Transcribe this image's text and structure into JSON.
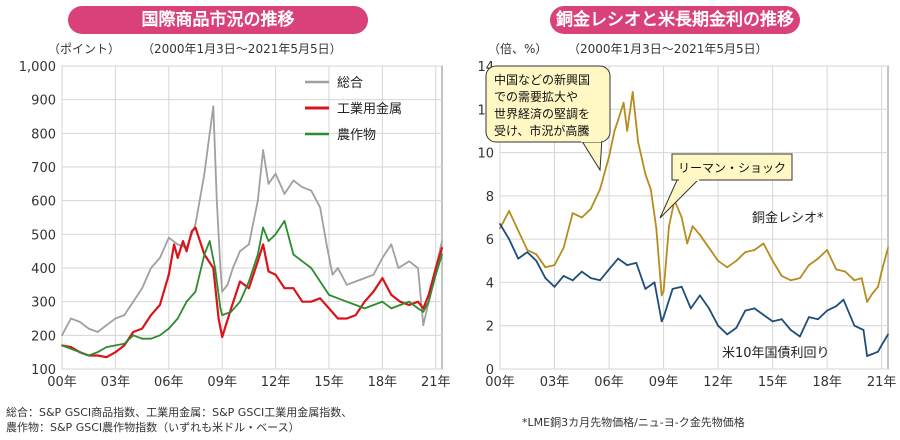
{
  "left": {
    "title": "国際商品市況の推移",
    "subtitle": "（2000年1月3日〜2021年5月5日）",
    "unit": "（ポイント）",
    "notes": [
      "総合：S&P GSCI商品指数、工業用金属：S&P GSCI工業用金属指数、",
      "農作物：S&P GSCI農作物指数（いずれも米ドル・ベース）"
    ]
  },
  "right": {
    "title": "銅金レシオと米長期金利の推移",
    "subtitle": "（2000年1月3日〜2021年5月5日）",
    "unit": "（倍、%）",
    "notes": [
      "*LME銅3カ月先物価格/ニュ-ヨ-ク金先物価格"
    ],
    "callout_text": [
      "中国などの新興国",
      "での需要拡大や",
      "世界経済の堅調を",
      "受け、市況が高騰"
    ],
    "lehman_label": "リーマン・ショック"
  },
  "colors": {
    "total": "#a0a0a0",
    "metals": "#d9141b",
    "agri": "#2e8b2e",
    "copper_gold": "#b58d1e",
    "treasury": "#1f4e79",
    "title_bg": "#d9417a"
  },
  "chart_data": [
    {
      "type": "line",
      "title": "国際商品市況の推移",
      "ylabel": "（ポイント）",
      "ylim": [
        100,
        1000
      ],
      "yticks": [
        100,
        200,
        300,
        400,
        500,
        600,
        700,
        800,
        900,
        1000
      ],
      "yticklabels": [
        "100",
        "200",
        "300",
        "400",
        "500",
        "600",
        "700",
        "800",
        "900",
        "1,000"
      ],
      "xlim": [
        2000,
        2021.35
      ],
      "xticks": [
        2000,
        2003,
        2006,
        2009,
        2012,
        2015,
        2018,
        2021
      ],
      "xticklabels": [
        "00年",
        "03年",
        "06年",
        "09年",
        "12年",
        "15年",
        "18年",
        "21年"
      ],
      "grid": true,
      "legend_position": "top-right",
      "series": [
        {
          "name": "総合",
          "color": "#a0a0a0",
          "x": [
            2000,
            2000.5,
            2001,
            2001.5,
            2002,
            2002.5,
            2003,
            2003.5,
            2004,
            2004.5,
            2005,
            2005.5,
            2006,
            2006.5,
            2007,
            2007.5,
            2008,
            2008.3,
            2008.5,
            2008.7,
            2008.9,
            2009,
            2009.3,
            2009.6,
            2010,
            2010.5,
            2011,
            2011.3,
            2011.6,
            2012,
            2012.5,
            2013,
            2013.5,
            2014,
            2014.5,
            2014.9,
            2015.2,
            2015.5,
            2016,
            2016.5,
            2017,
            2017.5,
            2018,
            2018.5,
            2018.9,
            2019.5,
            2020,
            2020.3,
            2020.6,
            2021,
            2021.35
          ],
          "y": [
            200,
            250,
            240,
            220,
            210,
            230,
            250,
            260,
            300,
            340,
            400,
            430,
            490,
            470,
            460,
            530,
            680,
            800,
            880,
            600,
            400,
            330,
            350,
            400,
            450,
            470,
            600,
            750,
            650,
            680,
            620,
            660,
            640,
            630,
            580,
            460,
            380,
            400,
            350,
            360,
            370,
            380,
            430,
            470,
            400,
            420,
            400,
            230,
            300,
            400,
            480
          ]
        },
        {
          "name": "工業用金属",
          "color": "#d9141b",
          "x": [
            2000,
            2000.5,
            2001,
            2001.5,
            2002,
            2002.5,
            2003,
            2003.5,
            2004,
            2004.5,
            2005,
            2005.5,
            2006,
            2006.3,
            2006.5,
            2006.8,
            2007,
            2007.3,
            2007.5,
            2008,
            2008.5,
            2008.8,
            2009,
            2009.5,
            2010,
            2010.5,
            2011,
            2011.3,
            2011.6,
            2012,
            2012.5,
            2013,
            2013.5,
            2014,
            2014.5,
            2015,
            2015.5,
            2016,
            2016.5,
            2017,
            2017.5,
            2018,
            2018.5,
            2019,
            2019.5,
            2020,
            2020.3,
            2020.6,
            2021,
            2021.35
          ],
          "y": [
            170,
            165,
            150,
            140,
            140,
            135,
            150,
            170,
            210,
            220,
            260,
            290,
            380,
            470,
            430,
            480,
            450,
            510,
            520,
            440,
            400,
            250,
            195,
            280,
            360,
            340,
            420,
            470,
            390,
            380,
            340,
            340,
            300,
            300,
            310,
            280,
            250,
            250,
            260,
            300,
            330,
            370,
            320,
            300,
            290,
            300,
            280,
            320,
            400,
            460
          ]
        },
        {
          "name": "農作物",
          "color": "#2e8b2e",
          "x": [
            2000,
            2000.5,
            2001,
            2001.5,
            2002,
            2002.5,
            2003,
            2003.5,
            2004,
            2004.5,
            2005,
            2005.5,
            2006,
            2006.5,
            2007,
            2007.5,
            2008,
            2008.3,
            2008.6,
            2008.9,
            2009,
            2009.5,
            2010,
            2010.5,
            2011,
            2011.3,
            2011.6,
            2012,
            2012.5,
            2013,
            2013.5,
            2014,
            2014.5,
            2015,
            2015.5,
            2016,
            2016.5,
            2017,
            2017.5,
            2018,
            2018.5,
            2019,
            2019.5,
            2020,
            2020.3,
            2020.6,
            2021,
            2021.35
          ],
          "y": [
            170,
            160,
            150,
            140,
            150,
            165,
            170,
            175,
            200,
            190,
            190,
            200,
            220,
            250,
            300,
            330,
            440,
            480,
            400,
            280,
            260,
            270,
            300,
            360,
            440,
            520,
            480,
            500,
            540,
            440,
            420,
            400,
            360,
            320,
            310,
            300,
            290,
            280,
            290,
            300,
            280,
            290,
            300,
            280,
            270,
            300,
            380,
            440
          ]
        }
      ]
    },
    {
      "type": "line",
      "title": "銅金レシオと米長期金利の推移",
      "ylabel": "（倍、%）",
      "ylim": [
        0,
        14
      ],
      "yticks": [
        0,
        2,
        4,
        6,
        8,
        10,
        12,
        14
      ],
      "yticklabels": [
        "0",
        "2",
        "4",
        "6",
        "8",
        "10",
        "12",
        "14"
      ],
      "xlim": [
        2000,
        2021.35
      ],
      "xticks": [
        2000,
        2003,
        2006,
        2009,
        2012,
        2015,
        2018,
        2021
      ],
      "xticklabels": [
        "00年",
        "03年",
        "06年",
        "09年",
        "12年",
        "15年",
        "18年",
        "21年"
      ],
      "grid": true,
      "series": [
        {
          "name": "銅金レシオ*",
          "color": "#b58d1e",
          "x": [
            2000,
            2000.5,
            2001,
            2001.5,
            2002,
            2002.5,
            2003,
            2003.5,
            2004,
            2004.5,
            2005,
            2005.5,
            2006,
            2006.3,
            2006.5,
            2006.8,
            2007,
            2007.3,
            2007.6,
            2008,
            2008.3,
            2008.6,
            2008.9,
            2009,
            2009.3,
            2009.6,
            2010,
            2010.3,
            2010.6,
            2011,
            2011.5,
            2012,
            2012.5,
            2013,
            2013.5,
            2014,
            2014.5,
            2015,
            2015.5,
            2016,
            2016.5,
            2017,
            2017.5,
            2018,
            2018.5,
            2019,
            2019.5,
            2019.9,
            2020.2,
            2020.5,
            2020.8,
            2021,
            2021.35
          ],
          "y": [
            6.5,
            7.3,
            6.4,
            5.5,
            5.3,
            4.7,
            4.8,
            5.6,
            7.2,
            7.0,
            7.4,
            8.3,
            9.8,
            11.0,
            11.5,
            12.3,
            11.0,
            12.8,
            10.5,
            9.0,
            8.3,
            6.5,
            3.4,
            3.6,
            6.6,
            7.8,
            7.0,
            5.8,
            6.6,
            6.2,
            5.6,
            5.0,
            4.7,
            5.0,
            5.4,
            5.5,
            5.8,
            5.0,
            4.3,
            4.1,
            4.2,
            4.8,
            5.1,
            5.5,
            4.6,
            4.5,
            4.1,
            4.2,
            3.1,
            3.5,
            3.8,
            4.5,
            5.6
          ]
        },
        {
          "name": "米10年国債利回り",
          "color": "#1f4e79",
          "x": [
            2000,
            2000.5,
            2001,
            2001.5,
            2002,
            2002.5,
            2003,
            2003.5,
            2004,
            2004.5,
            2005,
            2005.5,
            2006,
            2006.5,
            2007,
            2007.5,
            2008,
            2008.5,
            2008.9,
            2009,
            2009.5,
            2010,
            2010.5,
            2011,
            2011.5,
            2012,
            2012.5,
            2013,
            2013.5,
            2014,
            2014.5,
            2015,
            2015.5,
            2016,
            2016.5,
            2017,
            2017.5,
            2018,
            2018.5,
            2018.9,
            2019.5,
            2020,
            2020.2,
            2020.5,
            2020.8,
            2021,
            2021.35
          ],
          "y": [
            6.7,
            6.0,
            5.1,
            5.4,
            5.0,
            4.2,
            3.8,
            4.3,
            4.1,
            4.5,
            4.2,
            4.1,
            4.6,
            5.1,
            4.8,
            4.9,
            3.7,
            4.0,
            2.2,
            2.4,
            3.7,
            3.8,
            2.8,
            3.4,
            2.8,
            2.0,
            1.6,
            1.9,
            2.7,
            2.8,
            2.5,
            2.2,
            2.3,
            1.8,
            1.5,
            2.4,
            2.3,
            2.7,
            2.9,
            3.2,
            2.0,
            1.8,
            0.6,
            0.7,
            0.8,
            1.1,
            1.6
          ]
        }
      ]
    }
  ]
}
